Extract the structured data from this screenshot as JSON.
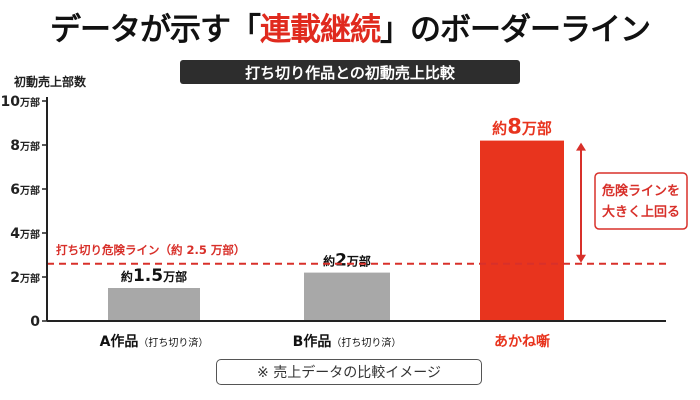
{
  "headline": {
    "prefix": "データが示す",
    "bracket_open": "「",
    "highlight": "連載継続",
    "bracket_close": "」",
    "suffix": "のボーダーライン"
  },
  "subtitle": "打ち切り作品との初動売上比較",
  "footnote": "※ 売上データの比較イメージ",
  "colors": {
    "highlight": "#e02a1e",
    "bar_gray": "#a8a8a8",
    "bar_red": "#e8341e",
    "axis": "#222222",
    "danger_line": "#d8302a",
    "grid": "#bdbdbd"
  },
  "chart_data": {
    "type": "bar",
    "ylabel": "初動売上部数",
    "ylim": [
      0,
      10
    ],
    "yticks": [
      {
        "value": 0,
        "label": "0"
      },
      {
        "value": 2,
        "label": "2万部"
      },
      {
        "value": 4,
        "label": "4万部"
      },
      {
        "value": 6,
        "label": "6万部"
      },
      {
        "value": 8,
        "label": "8万部"
      },
      {
        "value": 10,
        "label": "10万部"
      }
    ],
    "bars": [
      {
        "category": "A作品",
        "category_note": "（打ち切り済）",
        "value": 1.5,
        "label_prefix": "約",
        "label_value": "1.5",
        "label_unit": "万部",
        "highlight": false
      },
      {
        "category": "B作品",
        "category_note": "（打ち切り済）",
        "value": 2.2,
        "label_prefix": "約",
        "label_value": "2",
        "label_unit": "万部",
        "highlight": false
      },
      {
        "category": "あかね噺",
        "category_note": "",
        "value": 8.2,
        "label_prefix": "約",
        "label_value": "8",
        "label_unit": "万部",
        "highlight": true
      }
    ],
    "threshold": {
      "value": 2.6,
      "label": "打ち切り危険ライン（約 2.5 万部）"
    },
    "callout": {
      "lines": [
        "危険ラインを",
        "大きく上回る"
      ]
    }
  }
}
